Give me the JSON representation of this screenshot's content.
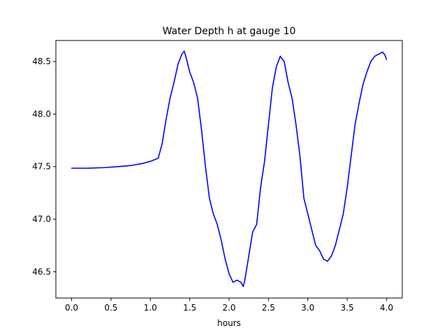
{
  "chart_data": {
    "type": "line",
    "title": "Water Depth h at gauge 10",
    "xlabel": "hours",
    "ylabel": "",
    "xlim": [
      -0.2,
      4.2
    ],
    "ylim": [
      46.25,
      48.7
    ],
    "xticks": [
      {
        "value": 0.0,
        "label": "0.0"
      },
      {
        "value": 0.5,
        "label": "0.5"
      },
      {
        "value": 1.0,
        "label": "1.0"
      },
      {
        "value": 1.5,
        "label": "1.5"
      },
      {
        "value": 2.0,
        "label": "2.0"
      },
      {
        "value": 2.5,
        "label": "2.5"
      },
      {
        "value": 3.0,
        "label": "3.0"
      },
      {
        "value": 3.5,
        "label": "3.5"
      },
      {
        "value": 4.0,
        "label": "4.0"
      }
    ],
    "yticks": [
      {
        "value": 46.5,
        "label": "46.5"
      },
      {
        "value": 47.0,
        "label": "47.0"
      },
      {
        "value": 47.5,
        "label": "47.5"
      },
      {
        "value": 48.0,
        "label": "48.0"
      },
      {
        "value": 48.5,
        "label": "48.5"
      }
    ],
    "grid": false,
    "series": [
      {
        "color": "#0000ff",
        "points": [
          [
            0.0,
            47.485
          ],
          [
            0.2,
            47.485
          ],
          [
            0.4,
            47.49
          ],
          [
            0.6,
            47.5
          ],
          [
            0.75,
            47.51
          ],
          [
            0.9,
            47.53
          ],
          [
            1.0,
            47.55
          ],
          [
            1.1,
            47.58
          ],
          [
            1.15,
            47.72
          ],
          [
            1.2,
            47.95
          ],
          [
            1.25,
            48.15
          ],
          [
            1.3,
            48.3
          ],
          [
            1.35,
            48.47
          ],
          [
            1.4,
            48.57
          ],
          [
            1.43,
            48.6
          ],
          [
            1.45,
            48.55
          ],
          [
            1.5,
            48.4
          ],
          [
            1.55,
            48.3
          ],
          [
            1.6,
            48.15
          ],
          [
            1.65,
            47.85
          ],
          [
            1.7,
            47.5
          ],
          [
            1.75,
            47.2
          ],
          [
            1.8,
            47.05
          ],
          [
            1.85,
            46.95
          ],
          [
            1.9,
            46.8
          ],
          [
            1.95,
            46.62
          ],
          [
            2.0,
            46.48
          ],
          [
            2.05,
            46.4
          ],
          [
            2.1,
            46.42
          ],
          [
            2.15,
            46.4
          ],
          [
            2.18,
            46.36
          ],
          [
            2.2,
            46.42
          ],
          [
            2.25,
            46.65
          ],
          [
            2.3,
            46.88
          ],
          [
            2.35,
            46.95
          ],
          [
            2.4,
            47.3
          ],
          [
            2.45,
            47.55
          ],
          [
            2.5,
            47.9
          ],
          [
            2.55,
            48.25
          ],
          [
            2.6,
            48.45
          ],
          [
            2.65,
            48.55
          ],
          [
            2.7,
            48.5
          ],
          [
            2.75,
            48.3
          ],
          [
            2.8,
            48.15
          ],
          [
            2.85,
            47.9
          ],
          [
            2.9,
            47.6
          ],
          [
            2.95,
            47.2
          ],
          [
            3.0,
            47.05
          ],
          [
            3.05,
            46.9
          ],
          [
            3.1,
            46.75
          ],
          [
            3.15,
            46.7
          ],
          [
            3.2,
            46.62
          ],
          [
            3.25,
            46.6
          ],
          [
            3.3,
            46.65
          ],
          [
            3.35,
            46.75
          ],
          [
            3.4,
            46.9
          ],
          [
            3.45,
            47.05
          ],
          [
            3.5,
            47.3
          ],
          [
            3.55,
            47.6
          ],
          [
            3.6,
            47.9
          ],
          [
            3.65,
            48.1
          ],
          [
            3.7,
            48.28
          ],
          [
            3.75,
            48.4
          ],
          [
            3.8,
            48.5
          ],
          [
            3.85,
            48.55
          ],
          [
            3.9,
            48.57
          ],
          [
            3.95,
            48.59
          ],
          [
            3.98,
            48.56
          ],
          [
            4.0,
            48.52
          ]
        ]
      }
    ]
  }
}
